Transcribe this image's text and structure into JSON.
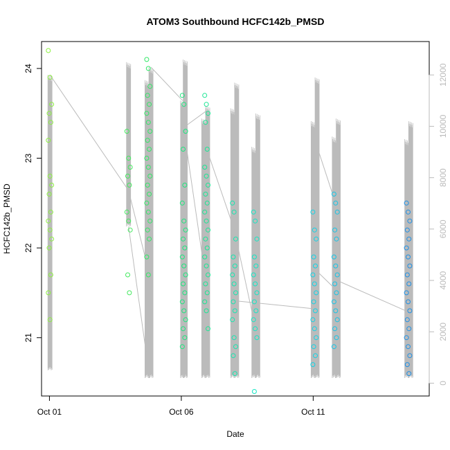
{
  "chart_data": {
    "type": "scatter",
    "title": "ATOM3 Southbound HCFC142b_PMSD",
    "xlabel": "Date",
    "ylabel": "HCFC142b_PMSD",
    "x_ticks": [
      "Oct 01",
      "Oct 06",
      "Oct 11"
    ],
    "x_tick_days": [
      1,
      6,
      11
    ],
    "xlim_days": [
      0.7,
      15.4
    ],
    "ylim": [
      20.35,
      24.3
    ],
    "y_ticks": [
      21,
      22,
      23,
      24
    ],
    "y2lim": [
      -500,
      13300
    ],
    "y2_ticks": [
      0,
      2000,
      4000,
      6000,
      8000,
      10000,
      12000
    ],
    "grid": false,
    "series": [
      {
        "kind": "points",
        "color_ramp": [
          "#8cf040",
          "#1ee66e",
          "#10e6e6",
          "#1e90e6"
        ],
        "clusters": [
          {
            "day": 1.02,
            "values": [
              24.2,
              23.9,
              23.6,
              23.5,
              23.4,
              23.2,
              22.8,
              22.7,
              22.6,
              22.4,
              22.3,
              22.2,
              22.1,
              22.0,
              21.7,
              21.5,
              21.2
            ]
          },
          {
            "day": 4.0,
            "values": [
              23.3,
              23.0,
              22.9,
              22.8,
              22.7,
              22.4,
              22.3,
              22.2,
              21.7,
              21.5
            ]
          },
          {
            "day": 4.75,
            "values": [
              24.1,
              24.0,
              23.8,
              23.7,
              23.6,
              23.5,
              23.4,
              23.3,
              23.2,
              23.1,
              23.0,
              22.9,
              22.8,
              22.7,
              22.6,
              22.5,
              22.4,
              22.3,
              22.2,
              22.1,
              21.9,
              21.7
            ]
          },
          {
            "day": 6.1,
            "values": [
              23.7,
              23.6,
              23.3,
              23.1,
              22.7,
              22.5,
              22.3,
              22.2,
              22.1,
              22.0,
              21.9,
              21.8,
              21.7,
              21.6,
              21.5,
              21.4,
              21.3,
              21.2,
              21.1,
              21.0,
              20.9
            ]
          },
          {
            "day": 6.95,
            "values": [
              23.7,
              23.6,
              23.5,
              23.4,
              23.1,
              22.9,
              22.8,
              22.7,
              22.6,
              22.5,
              22.4,
              22.3,
              22.2,
              22.1,
              22.0,
              21.9,
              21.8,
              21.7,
              21.6,
              21.5,
              21.4,
              21.3,
              21.1
            ]
          },
          {
            "day": 8.0,
            "values": [
              22.5,
              22.4,
              22.1,
              21.9,
              21.8,
              21.7,
              21.6,
              21.5,
              21.4,
              21.3,
              21.2,
              21.0,
              20.9,
              20.8,
              20.6
            ]
          },
          {
            "day": 8.8,
            "values": [
              22.4,
              22.3,
              22.1,
              21.9,
              21.8,
              21.7,
              21.6,
              21.5,
              21.4,
              21.3,
              21.2,
              21.1,
              21.0,
              20.4
            ]
          },
          {
            "day": 11.05,
            "values": [
              22.4,
              22.2,
              22.1,
              21.9,
              21.8,
              21.7,
              21.6,
              21.5,
              21.4,
              21.3,
              21.2,
              21.1,
              21.0,
              20.9,
              20.8,
              20.7
            ]
          },
          {
            "day": 11.85,
            "values": [
              22.6,
              22.5,
              22.4,
              22.2,
              22.1,
              21.9,
              21.8,
              21.7,
              21.6,
              21.5,
              21.4,
              21.3,
              21.2,
              21.1,
              21.0,
              20.9
            ]
          },
          {
            "day": 14.6,
            "values": [
              22.5,
              22.4,
              22.3,
              22.2,
              22.1,
              22.0,
              21.9,
              21.8,
              21.7,
              21.6,
              21.5,
              21.4,
              21.3,
              21.2,
              21.1,
              21.0,
              20.9,
              20.8,
              20.7,
              20.6
            ]
          }
        ]
      },
      {
        "kind": "altitude",
        "color": "#bbbbbb",
        "axis": "right",
        "spikes": [
          {
            "day": 1.02,
            "lo": 500,
            "hi": 12000
          },
          {
            "day": 4.0,
            "lo": 6100,
            "hi": 12500
          },
          {
            "day": 4.7,
            "lo": 200,
            "hi": 11800
          },
          {
            "day": 4.85,
            "lo": 200,
            "hi": 12300
          },
          {
            "day": 6.05,
            "lo": 200,
            "hi": 11000
          },
          {
            "day": 6.15,
            "lo": 200,
            "hi": 12600
          },
          {
            "day": 6.85,
            "lo": 200,
            "hi": 10300
          },
          {
            "day": 7.0,
            "lo": 200,
            "hi": 10800
          },
          {
            "day": 7.95,
            "lo": 200,
            "hi": 10700
          },
          {
            "day": 8.1,
            "lo": 200,
            "hi": 11700
          },
          {
            "day": 8.75,
            "lo": 200,
            "hi": 9200
          },
          {
            "day": 8.9,
            "lo": 200,
            "hi": 10500
          },
          {
            "day": 11.0,
            "lo": 200,
            "hi": 10200
          },
          {
            "day": 11.15,
            "lo": 200,
            "hi": 11900
          },
          {
            "day": 11.8,
            "lo": 200,
            "hi": 9600
          },
          {
            "day": 11.95,
            "lo": 200,
            "hi": 10300
          },
          {
            "day": 14.55,
            "lo": 200,
            "hi": 9500
          },
          {
            "day": 14.7,
            "lo": 200,
            "hi": 10200
          }
        ],
        "transits": [
          [
            [
              1.02,
              12000
            ],
            [
              4.0,
              7500
            ],
            [
              4.85,
              4000
            ]
          ],
          [
            [
              4.0,
              6100
            ],
            [
              4.8,
              200
            ]
          ],
          [
            [
              4.85,
              12300
            ],
            [
              6.05,
              11000
            ]
          ],
          [
            [
              6.15,
              10000
            ],
            [
              6.95,
              10600
            ]
          ],
          [
            [
              6.15,
              9500
            ],
            [
              7.0,
              3500
            ]
          ],
          [
            [
              7.0,
              9000
            ],
            [
              8.0,
              6000
            ],
            [
              8.8,
              2200
            ]
          ],
          [
            [
              8.1,
              3200
            ],
            [
              11.0,
              2900
            ]
          ],
          [
            [
              11.0,
              4500
            ],
            [
              11.9,
              3600
            ]
          ],
          [
            [
              11.15,
              9200
            ],
            [
              11.85,
              7000
            ]
          ],
          [
            [
              11.9,
              4000
            ],
            [
              14.55,
              2800
            ]
          ]
        ]
      }
    ]
  }
}
